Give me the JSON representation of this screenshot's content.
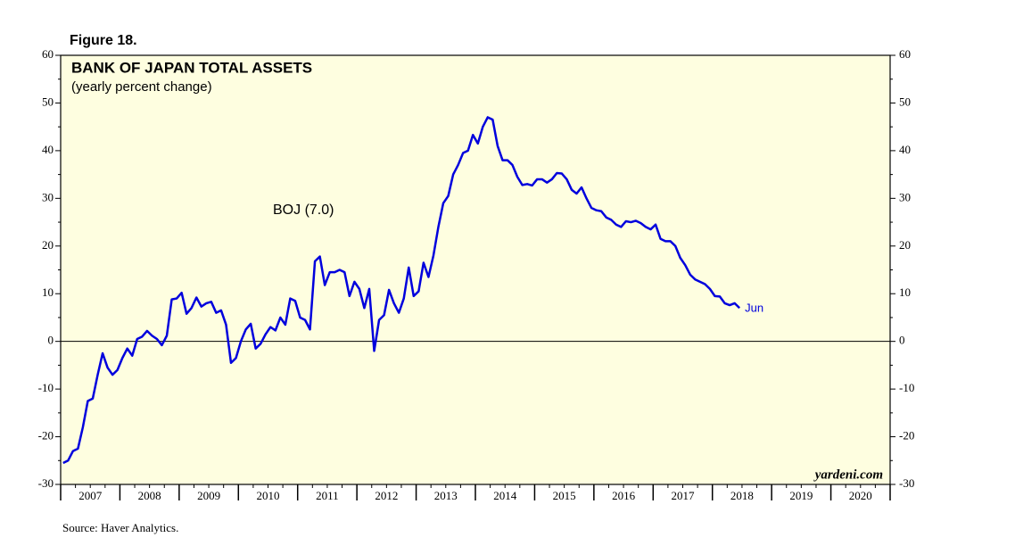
{
  "chart_data": {
    "type": "line",
    "figure_label": "Figure 18.",
    "title": "BANK OF JAPAN TOTAL ASSETS",
    "subtitle": "(yearly percent change)",
    "source": "Source: Haver Analytics.",
    "watermark": "yardeni.com",
    "end_label": "Jun",
    "x": [
      "2007-01",
      "2007-02",
      "2007-03",
      "2007-04",
      "2007-05",
      "2007-06",
      "2007-07",
      "2007-08",
      "2007-09",
      "2007-10",
      "2007-11",
      "2007-12",
      "2008-01",
      "2008-02",
      "2008-03",
      "2008-04",
      "2008-05",
      "2008-06",
      "2008-07",
      "2008-08",
      "2008-09",
      "2008-10",
      "2008-11",
      "2008-12",
      "2009-01",
      "2009-02",
      "2009-03",
      "2009-04",
      "2009-05",
      "2009-06",
      "2009-07",
      "2009-08",
      "2009-09",
      "2009-10",
      "2009-11",
      "2009-12",
      "2010-01",
      "2010-02",
      "2010-03",
      "2010-04",
      "2010-05",
      "2010-06",
      "2010-07",
      "2010-08",
      "2010-09",
      "2010-10",
      "2010-11",
      "2010-12",
      "2011-01",
      "2011-02",
      "2011-03",
      "2011-04",
      "2011-05",
      "2011-06",
      "2011-07",
      "2011-08",
      "2011-09",
      "2011-10",
      "2011-11",
      "2011-12",
      "2012-01",
      "2012-02",
      "2012-03",
      "2012-04",
      "2012-05",
      "2012-06",
      "2012-07",
      "2012-08",
      "2012-09",
      "2012-10",
      "2012-11",
      "2012-12",
      "2013-01",
      "2013-02",
      "2013-03",
      "2013-04",
      "2013-05",
      "2013-06",
      "2013-07",
      "2013-08",
      "2013-09",
      "2013-10",
      "2013-11",
      "2013-12",
      "2014-01",
      "2014-02",
      "2014-03",
      "2014-04",
      "2014-05",
      "2014-06",
      "2014-07",
      "2014-08",
      "2014-09",
      "2014-10",
      "2014-11",
      "2014-12",
      "2015-01",
      "2015-02",
      "2015-03",
      "2015-04",
      "2015-05",
      "2015-06",
      "2015-07",
      "2015-08",
      "2015-09",
      "2015-10",
      "2015-11",
      "2015-12",
      "2016-01",
      "2016-02",
      "2016-03",
      "2016-04",
      "2016-05",
      "2016-06",
      "2016-07",
      "2016-08",
      "2016-09",
      "2016-10",
      "2016-11",
      "2016-12",
      "2017-01",
      "2017-02",
      "2017-03",
      "2017-04",
      "2017-05",
      "2017-06",
      "2017-07",
      "2017-08",
      "2017-09",
      "2017-10",
      "2017-11",
      "2017-12",
      "2018-01",
      "2018-02",
      "2018-03",
      "2018-04",
      "2018-05",
      "2018-06"
    ],
    "series": [
      {
        "name": "BOJ (7.0)",
        "color": "#0000dd",
        "values": [
          -25.5,
          -25,
          -23,
          -22.5,
          -18,
          -12.5,
          -12,
          -7,
          -2.5,
          -5.5,
          -7,
          -6,
          -3.5,
          -1.5,
          -3,
          0.5,
          1,
          2.2,
          1.2,
          0.5,
          -0.8,
          1.2,
          8.8,
          9,
          10.2,
          5.8,
          7,
          9.2,
          7.3,
          8,
          8.3,
          6,
          6.5,
          3.5,
          -4.5,
          -3.5,
          0,
          2.5,
          3.7,
          -1.5,
          -0.5,
          1.5,
          3,
          2.3,
          5,
          3.5,
          9,
          8.5,
          5,
          4.5,
          2.5,
          16.8,
          17.8,
          11.8,
          14.5,
          14.5,
          15,
          14.5,
          9.5,
          12.5,
          11,
          7,
          11,
          -2,
          4.5,
          5.5,
          10.8,
          8,
          6,
          9,
          15.5,
          9.5,
          10.5,
          16.5,
          13.5,
          18,
          24,
          29,
          30.5,
          35,
          37,
          39.5,
          40,
          43.3,
          41.5,
          45,
          47,
          46.5,
          41,
          38,
          38,
          37,
          34.5,
          32.8,
          33,
          32.7,
          34,
          34,
          33.3,
          34,
          35.3,
          35.2,
          34,
          31.8,
          31,
          32.3,
          30,
          28,
          27.5,
          27.3,
          26,
          25.5,
          24.5,
          24,
          25.2,
          25,
          25.3,
          24.8,
          24,
          23.5,
          24.5,
          21.5,
          21,
          21,
          20,
          17.5,
          16,
          14,
          13,
          12.5,
          12,
          11,
          9.5,
          9.4,
          8,
          7.6,
          8,
          7
        ]
      }
    ],
    "xlim": [
      2007,
      2021
    ],
    "xticks": [
      2007,
      2008,
      2009,
      2010,
      2011,
      2012,
      2013,
      2014,
      2015,
      2016,
      2017,
      2018,
      2019,
      2020
    ],
    "ylim": [
      -30,
      60
    ],
    "yticks": [
      -30,
      -20,
      -10,
      0,
      10,
      20,
      30,
      40,
      50,
      60
    ]
  }
}
